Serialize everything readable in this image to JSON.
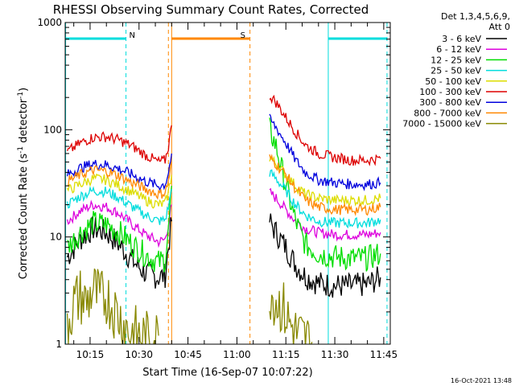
{
  "chart_data": {
    "type": "line",
    "title": "RHESSI Observing Summary Count Rates, Corrected",
    "xlabel": "Start Time (16-Sep-07 10:07:22)",
    "ylabel": "Corrected Count Rate (s⁻¹ detector⁻¹)",
    "ylabel_parts": {
      "base": "Corrected Count Rate (s",
      "sup1": "-1",
      "mid": " detector",
      "sup2": "-1",
      "end": ")"
    },
    "x_range": [
      "10:07:22",
      "11:47:00"
    ],
    "y_scale": "log",
    "y_range": [
      1,
      1000
    ],
    "x_ticks": [
      "10:15",
      "10:30",
      "10:45",
      "11:00",
      "11:15",
      "11:30",
      "11:45"
    ],
    "y_ticks": [
      "1",
      "10",
      "100",
      "1000"
    ],
    "legend_header": [
      "Det 1,3,4,5,6,9,",
      "Att 0"
    ],
    "legend_position": "right",
    "series": [
      {
        "name": "3 - 6 keV",
        "color": "#000000",
        "points": [
          [
            "10:08",
            6.5
          ],
          [
            "10:12",
            9.5
          ],
          [
            "10:16",
            12
          ],
          [
            "10:20",
            11
          ],
          [
            "10:24",
            8.5
          ],
          [
            "10:28",
            6
          ],
          [
            "10:32",
            4.6
          ],
          [
            "10:36",
            4.2
          ],
          [
            "10:38",
            4.4
          ],
          [
            "10:39",
            8
          ],
          [
            "10:40",
            14
          ],
          [
            "11:10",
            14
          ],
          [
            "11:12",
            11
          ],
          [
            "11:15",
            8
          ],
          [
            "11:18",
            5.5
          ],
          [
            "11:21",
            4.3
          ],
          [
            "11:25",
            3.7
          ],
          [
            "11:30",
            3.5
          ],
          [
            "11:35",
            3.5
          ],
          [
            "11:40",
            3.6
          ],
          [
            "11:44",
            4.2
          ]
        ]
      },
      {
        "name": "6 - 12 keV",
        "color": "#dd00dd",
        "points": [
          [
            "10:08",
            14
          ],
          [
            "10:12",
            17.5
          ],
          [
            "10:16",
            20
          ],
          [
            "10:20",
            19
          ],
          [
            "10:24",
            16.5
          ],
          [
            "10:28",
            13
          ],
          [
            "10:32",
            10.5
          ],
          [
            "10:36",
            9
          ],
          [
            "10:38",
            9.5
          ],
          [
            "10:39",
            13
          ],
          [
            "10:40",
            20
          ],
          [
            "11:10",
            26
          ],
          [
            "11:12",
            23
          ],
          [
            "11:15",
            18
          ],
          [
            "11:18",
            14
          ],
          [
            "11:21",
            12
          ],
          [
            "11:25",
            11
          ],
          [
            "11:30",
            10.5
          ],
          [
            "11:35",
            10.5
          ],
          [
            "11:40",
            10.5
          ],
          [
            "11:44",
            11
          ]
        ]
      },
      {
        "name": "12 - 25 keV",
        "color": "#00dd00",
        "points": [
          [
            "10:08",
            8
          ],
          [
            "10:12",
            11
          ],
          [
            "10:16",
            13.5
          ],
          [
            "10:20",
            13
          ],
          [
            "10:24",
            11
          ],
          [
            "10:28",
            8.5
          ],
          [
            "10:32",
            6.8
          ],
          [
            "10:36",
            5.8
          ],
          [
            "10:38",
            6.2
          ],
          [
            "10:39",
            11
          ],
          [
            "10:40",
            30
          ],
          [
            "11:10",
            100
          ],
          [
            "11:12",
            70
          ],
          [
            "11:15",
            30
          ],
          [
            "11:18",
            14
          ],
          [
            "11:21",
            8.5
          ],
          [
            "11:25",
            7
          ],
          [
            "11:30",
            6.5
          ],
          [
            "11:35",
            6.3
          ],
          [
            "11:40",
            6.3
          ],
          [
            "11:44",
            7
          ]
        ]
      },
      {
        "name": "25 - 50 keV",
        "color": "#00dddd",
        "points": [
          [
            "10:08",
            20
          ],
          [
            "10:12",
            24
          ],
          [
            "10:16",
            27
          ],
          [
            "10:20",
            26.5
          ],
          [
            "10:24",
            23
          ],
          [
            "10:28",
            19
          ],
          [
            "10:32",
            16
          ],
          [
            "10:36",
            14
          ],
          [
            "10:38",
            14.5
          ],
          [
            "10:39",
            19
          ],
          [
            "10:40",
            28
          ],
          [
            "11:10",
            40
          ],
          [
            "11:12",
            35
          ],
          [
            "11:15",
            27
          ],
          [
            "11:18",
            20
          ],
          [
            "11:21",
            16
          ],
          [
            "11:25",
            14
          ],
          [
            "11:30",
            13.5
          ],
          [
            "11:35",
            13.5
          ],
          [
            "11:40",
            13.5
          ],
          [
            "11:44",
            14.5
          ]
        ]
      },
      {
        "name": "50 - 100 keV",
        "color": "#dddd00",
        "points": [
          [
            "10:08",
            27
          ],
          [
            "10:12",
            31
          ],
          [
            "10:16",
            35
          ],
          [
            "10:20",
            34
          ],
          [
            "10:24",
            30
          ],
          [
            "10:28",
            26
          ],
          [
            "10:32",
            22
          ],
          [
            "10:36",
            20
          ],
          [
            "10:38",
            20.5
          ],
          [
            "10:39",
            26
          ],
          [
            "10:40",
            38
          ],
          [
            "11:10",
            55
          ],
          [
            "11:12",
            48
          ],
          [
            "11:15",
            38
          ],
          [
            "11:18",
            30
          ],
          [
            "11:21",
            25
          ],
          [
            "11:25",
            23
          ],
          [
            "11:30",
            22
          ],
          [
            "11:35",
            22
          ],
          [
            "11:40",
            22
          ],
          [
            "11:44",
            23
          ]
        ]
      },
      {
        "name": "100 - 300 keV",
        "color": "#dd0000",
        "points": [
          [
            "10:08",
            62
          ],
          [
            "10:12",
            75
          ],
          [
            "10:16",
            85
          ],
          [
            "10:20",
            86
          ],
          [
            "10:24",
            80
          ],
          [
            "10:28",
            70
          ],
          [
            "10:32",
            58
          ],
          [
            "10:36",
            50
          ],
          [
            "10:38",
            52
          ],
          [
            "10:39",
            70
          ],
          [
            "10:40",
            110
          ],
          [
            "11:10",
            210
          ],
          [
            "11:12",
            180
          ],
          [
            "11:15",
            130
          ],
          [
            "11:18",
            95
          ],
          [
            "11:21",
            72
          ],
          [
            "11:25",
            60
          ],
          [
            "11:30",
            55
          ],
          [
            "11:35",
            52
          ],
          [
            "11:40",
            52
          ],
          [
            "11:44",
            54
          ]
        ]
      },
      {
        "name": "300 - 800 keV",
        "color": "#0000dd",
        "points": [
          [
            "10:08",
            38
          ],
          [
            "10:12",
            44
          ],
          [
            "10:16",
            48
          ],
          [
            "10:20",
            47
          ],
          [
            "10:24",
            43
          ],
          [
            "10:28",
            38
          ],
          [
            "10:32",
            33
          ],
          [
            "10:36",
            30
          ],
          [
            "10:38",
            31
          ],
          [
            "10:39",
            40
          ],
          [
            "10:40",
            60
          ],
          [
            "11:10",
            125
          ],
          [
            "11:12",
            105
          ],
          [
            "11:15",
            75
          ],
          [
            "11:18",
            52
          ],
          [
            "11:21",
            40
          ],
          [
            "11:25",
            34
          ],
          [
            "11:30",
            32
          ],
          [
            "11:35",
            31
          ],
          [
            "11:40",
            31
          ],
          [
            "11:44",
            32
          ]
        ]
      },
      {
        "name": "800 - 7000 keV",
        "color": "#ff8800",
        "points": [
          [
            "10:08",
            33
          ],
          [
            "10:12",
            38
          ],
          [
            "10:16",
            42
          ],
          [
            "10:20",
            41
          ],
          [
            "10:24",
            37
          ],
          [
            "10:28",
            32
          ],
          [
            "10:32",
            28
          ],
          [
            "10:36",
            25
          ],
          [
            "10:38",
            26
          ],
          [
            "10:39",
            33
          ],
          [
            "10:40",
            50
          ],
          [
            "11:10",
            55
          ],
          [
            "11:12",
            48
          ],
          [
            "11:15",
            38
          ],
          [
            "11:18",
            28
          ],
          [
            "11:21",
            22
          ],
          [
            "11:25",
            19
          ],
          [
            "11:30",
            18
          ],
          [
            "11:35",
            18
          ],
          [
            "11:40",
            18
          ],
          [
            "11:44",
            19
          ]
        ]
      },
      {
        "name": "7000 - 15000 keV",
        "color": "#888800",
        "points": [
          [
            "10:08",
            1.6
          ],
          [
            "10:10",
            2.4
          ],
          [
            "10:12",
            2.8
          ],
          [
            "10:14",
            2.4
          ],
          [
            "10:16",
            3.3
          ],
          [
            "10:18",
            2.6
          ],
          [
            "10:20",
            2.8
          ],
          [
            "10:22",
            2.2
          ],
          [
            "10:24",
            1.8
          ],
          [
            "10:27",
            1.3
          ],
          [
            "10:30",
            1.2
          ],
          [
            "10:33",
            1.1
          ],
          [
            "10:36",
            1.2
          ],
          [
            "11:10",
            3.2
          ],
          [
            "11:12",
            2.6
          ],
          [
            "11:14",
            2.2
          ],
          [
            "11:16",
            1.6
          ],
          [
            "11:18",
            1.3
          ],
          [
            "11:20",
            1.15
          ],
          [
            "11:23",
            1.05
          ]
        ]
      }
    ],
    "flag_bars": [
      {
        "label": "N",
        "color": "#00dddd",
        "from": "10:07:22",
        "to": "10:26"
      },
      {
        "label": "S",
        "color": "#ff8800",
        "from": "10:40",
        "to": "11:04"
      },
      {
        "label": "",
        "color": "#00dddd",
        "from": "11:28",
        "to": "11:46"
      }
    ],
    "marker_lines": [
      {
        "time": "10:07:30",
        "color": "#00dddd",
        "style": "solid"
      },
      {
        "time": "10:26",
        "color": "#00dddd",
        "style": "dashed"
      },
      {
        "time": "10:39",
        "color": "#ff8800",
        "style": "dashed"
      },
      {
        "time": "10:40",
        "color": "#ff8800",
        "style": "solid"
      },
      {
        "time": "11:04",
        "color": "#ff8800",
        "style": "dashed"
      },
      {
        "time": "11:28",
        "color": "#00dddd",
        "style": "solid"
      },
      {
        "time": "11:46",
        "color": "#00dddd",
        "style": "dashed"
      }
    ],
    "data_gap": [
      "10:41",
      "11:09"
    ],
    "footer_date": "16-Oct-2021 13:48"
  }
}
